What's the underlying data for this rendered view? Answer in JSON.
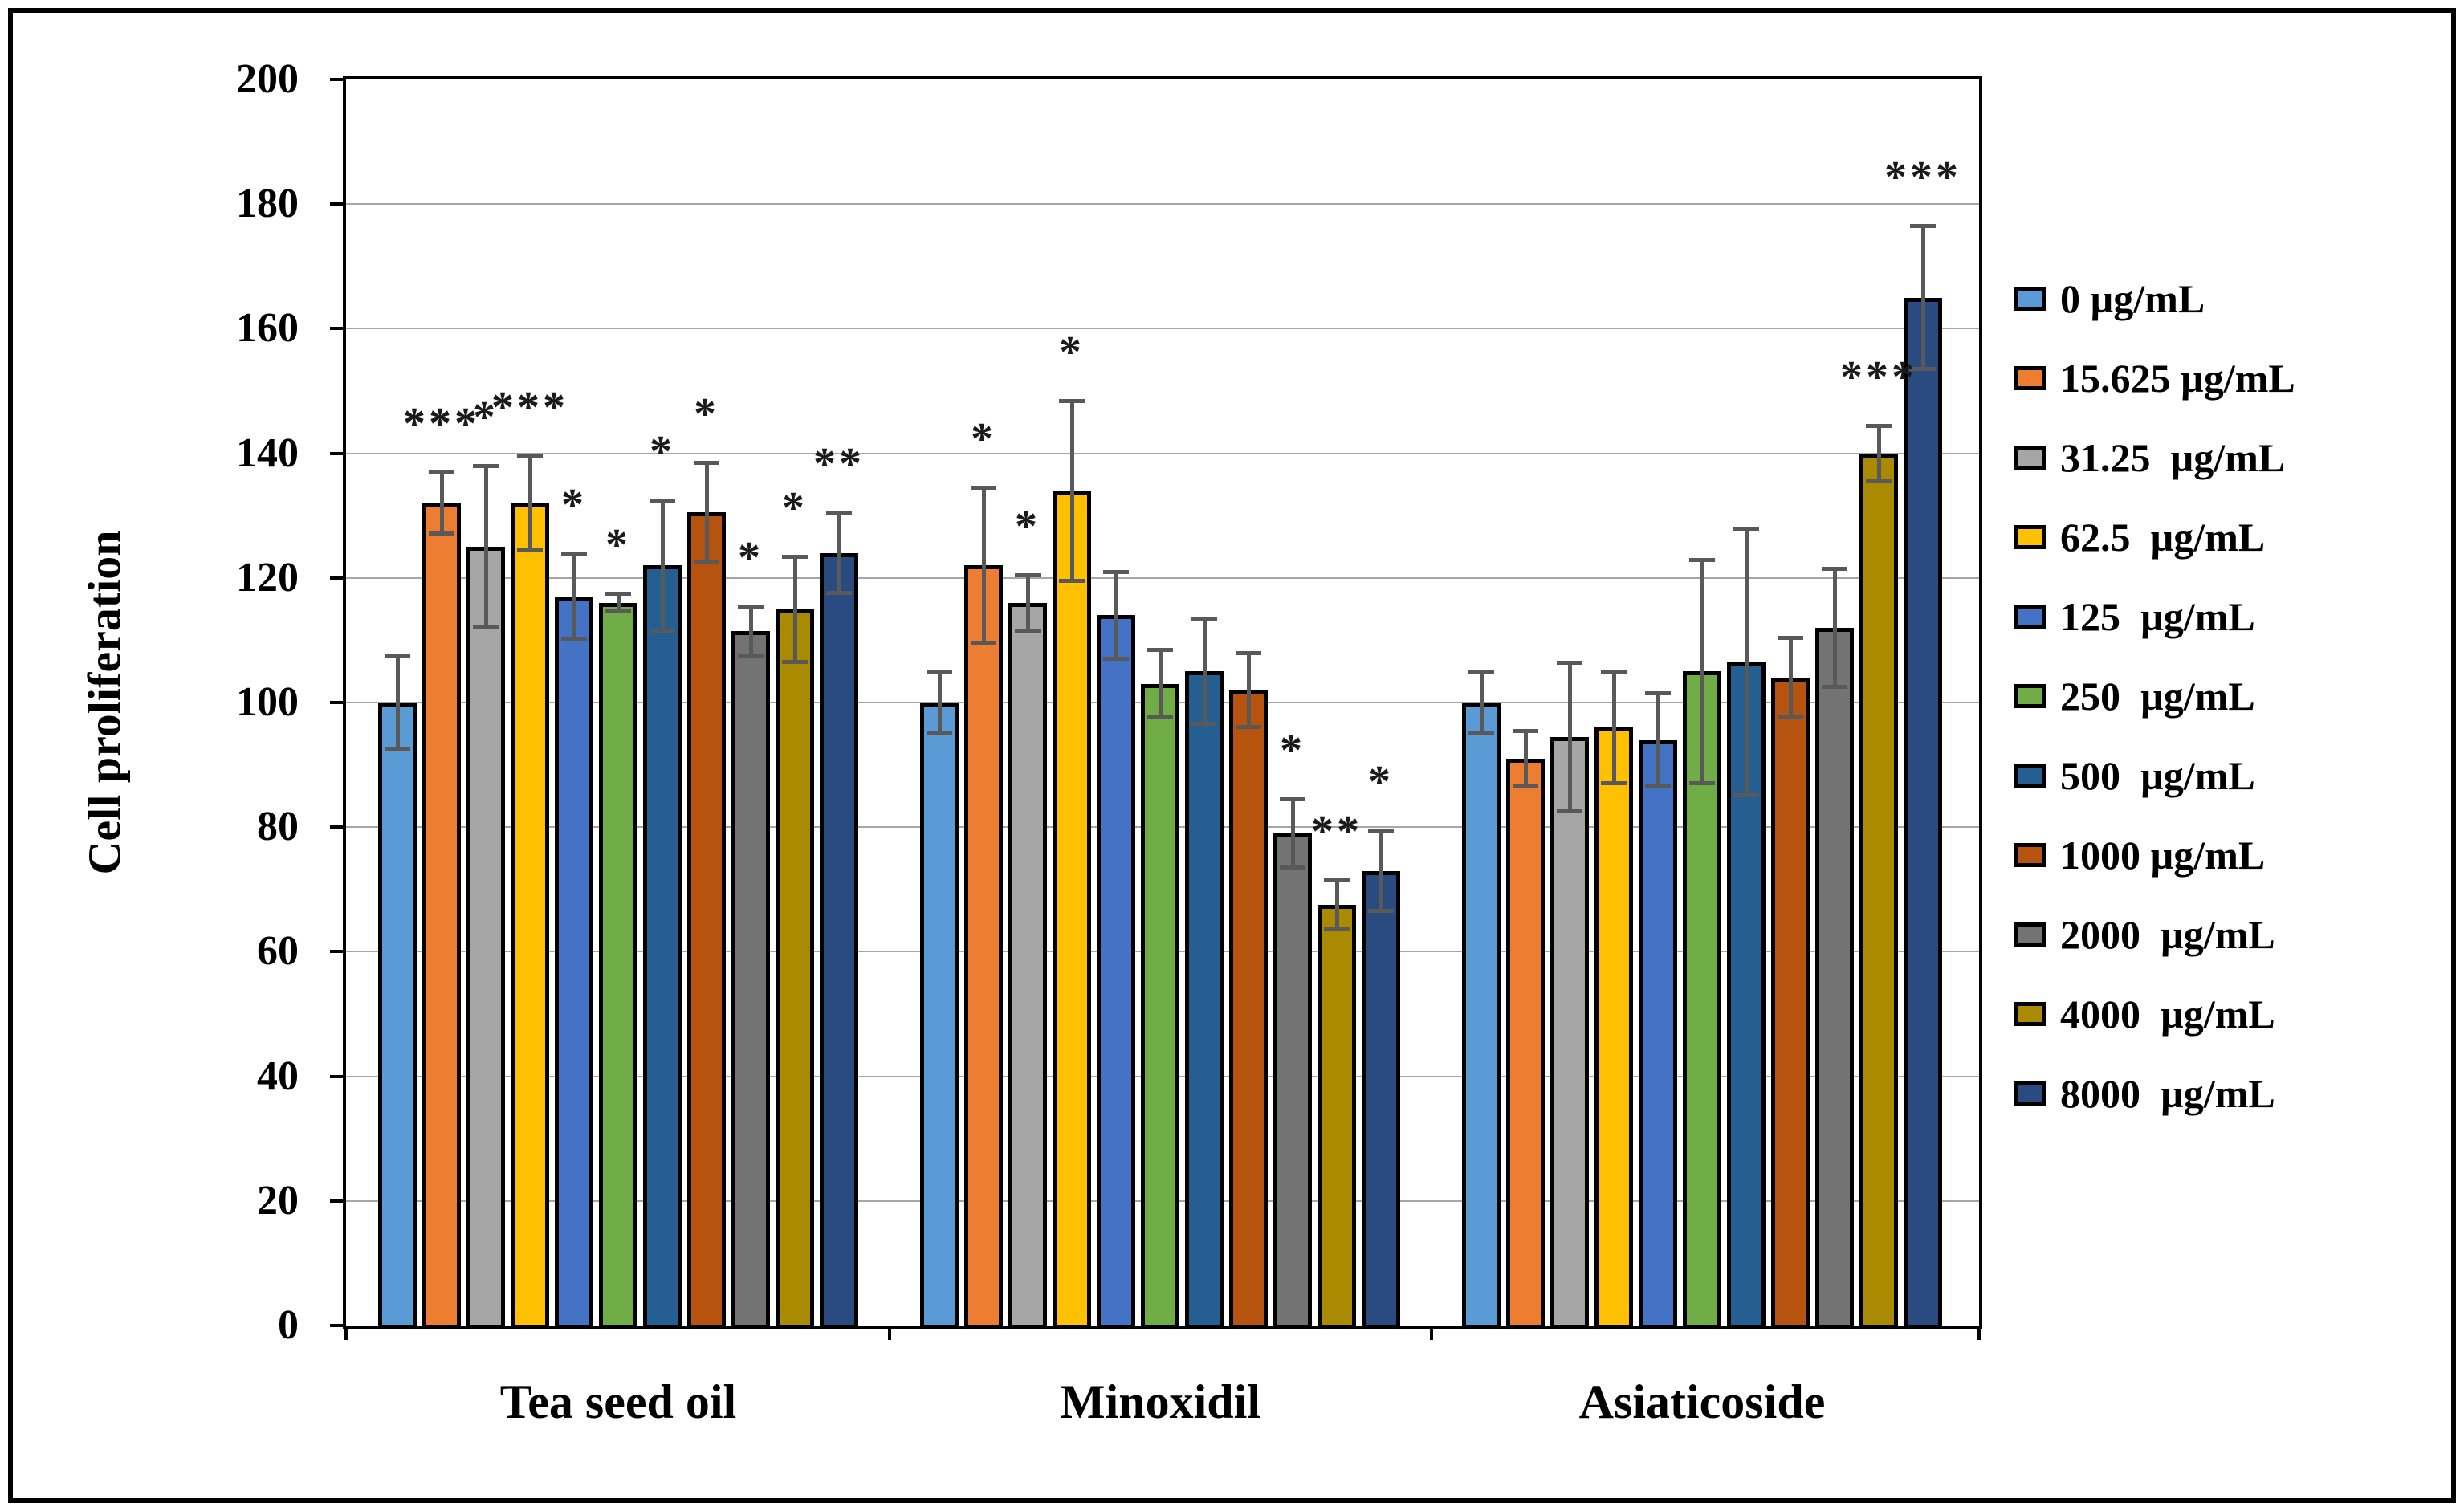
{
  "figure": {
    "background": "#ffffff",
    "border_color": "#000000",
    "error_bar_color": "#595959",
    "gridline_color": "#A6A6A6"
  },
  "chart_data": {
    "type": "bar",
    "title": "",
    "xlabel": "",
    "ylabel": "Cell proliferation",
    "ylim": [
      0,
      200
    ],
    "ytick_step": 20,
    "ytick_labels": [
      "0",
      "20",
      "40",
      "60",
      "80",
      "100",
      "120",
      "140",
      "160",
      "180",
      "200"
    ],
    "grid": true,
    "legend_position": "right",
    "categories": [
      "Tea seed oil",
      "Minoxidil",
      "Asiaticoside"
    ],
    "series": [
      {
        "name": "0 µg/mL",
        "color": "#5B9BD5",
        "values": [
          100,
          100,
          100
        ],
        "errors": [
          7.5,
          5,
          5
        ],
        "sig": [
          "",
          "",
          ""
        ]
      },
      {
        "name": "15.625 µg/mL",
        "color": "#ED7D31",
        "values": [
          132,
          122,
          91
        ],
        "errors": [
          5,
          12.5,
          4.5
        ],
        "sig": [
          "***",
          "*",
          ""
        ]
      },
      {
        "name": "31.25  µg/mL",
        "color": "#A6A6A6",
        "values": [
          125,
          116,
          94.5
        ],
        "errors": [
          13,
          4.5,
          12
        ],
        "sig": [
          "*",
          "*",
          ""
        ]
      },
      {
        "name": "62.5  µg/mL",
        "color": "#FFC000",
        "values": [
          132,
          134,
          96
        ],
        "errors": [
          7.5,
          14.5,
          9
        ],
        "sig": [
          "***",
          "*",
          ""
        ]
      },
      {
        "name": "125  µg/mL",
        "color": "#4472C4",
        "values": [
          117,
          114,
          94
        ],
        "errors": [
          7,
          7,
          7.5
        ],
        "sig": [
          "*",
          "",
          ""
        ]
      },
      {
        "name": "250  µg/mL",
        "color": "#70AD47",
        "values": [
          116,
          103,
          105
        ],
        "errors": [
          1.5,
          5.5,
          18
        ],
        "sig": [
          "*",
          "",
          ""
        ]
      },
      {
        "name": "500  µg/mL",
        "color": "#255E91",
        "values": [
          122,
          105,
          106.5
        ],
        "errors": [
          10.5,
          8.5,
          21.5
        ],
        "sig": [
          "*",
          "",
          ""
        ]
      },
      {
        "name": "1000 µg/mL",
        "color": "#B5530F",
        "values": [
          130.5,
          102,
          104
        ],
        "errors": [
          8,
          6,
          6.5
        ],
        "sig": [
          "*",
          "",
          ""
        ]
      },
      {
        "name": "2000  µg/mL",
        "color": "#737373",
        "values": [
          111.5,
          79,
          112
        ],
        "errors": [
          4,
          5.5,
          9.5
        ],
        "sig": [
          "*",
          "*",
          ""
        ]
      },
      {
        "name": "4000  µg/mL",
        "color": "#A98A00",
        "values": [
          115,
          67.5,
          140
        ],
        "errors": [
          8.5,
          4,
          4.5
        ],
        "sig": [
          "*",
          "**",
          "***"
        ]
      },
      {
        "name": "8000  µg/mL",
        "color": "#2A4B80",
        "values": [
          124,
          73,
          165
        ],
        "errors": [
          6.5,
          6.5,
          11.5
        ],
        "sig": [
          "**",
          "*",
          "***"
        ]
      }
    ]
  }
}
